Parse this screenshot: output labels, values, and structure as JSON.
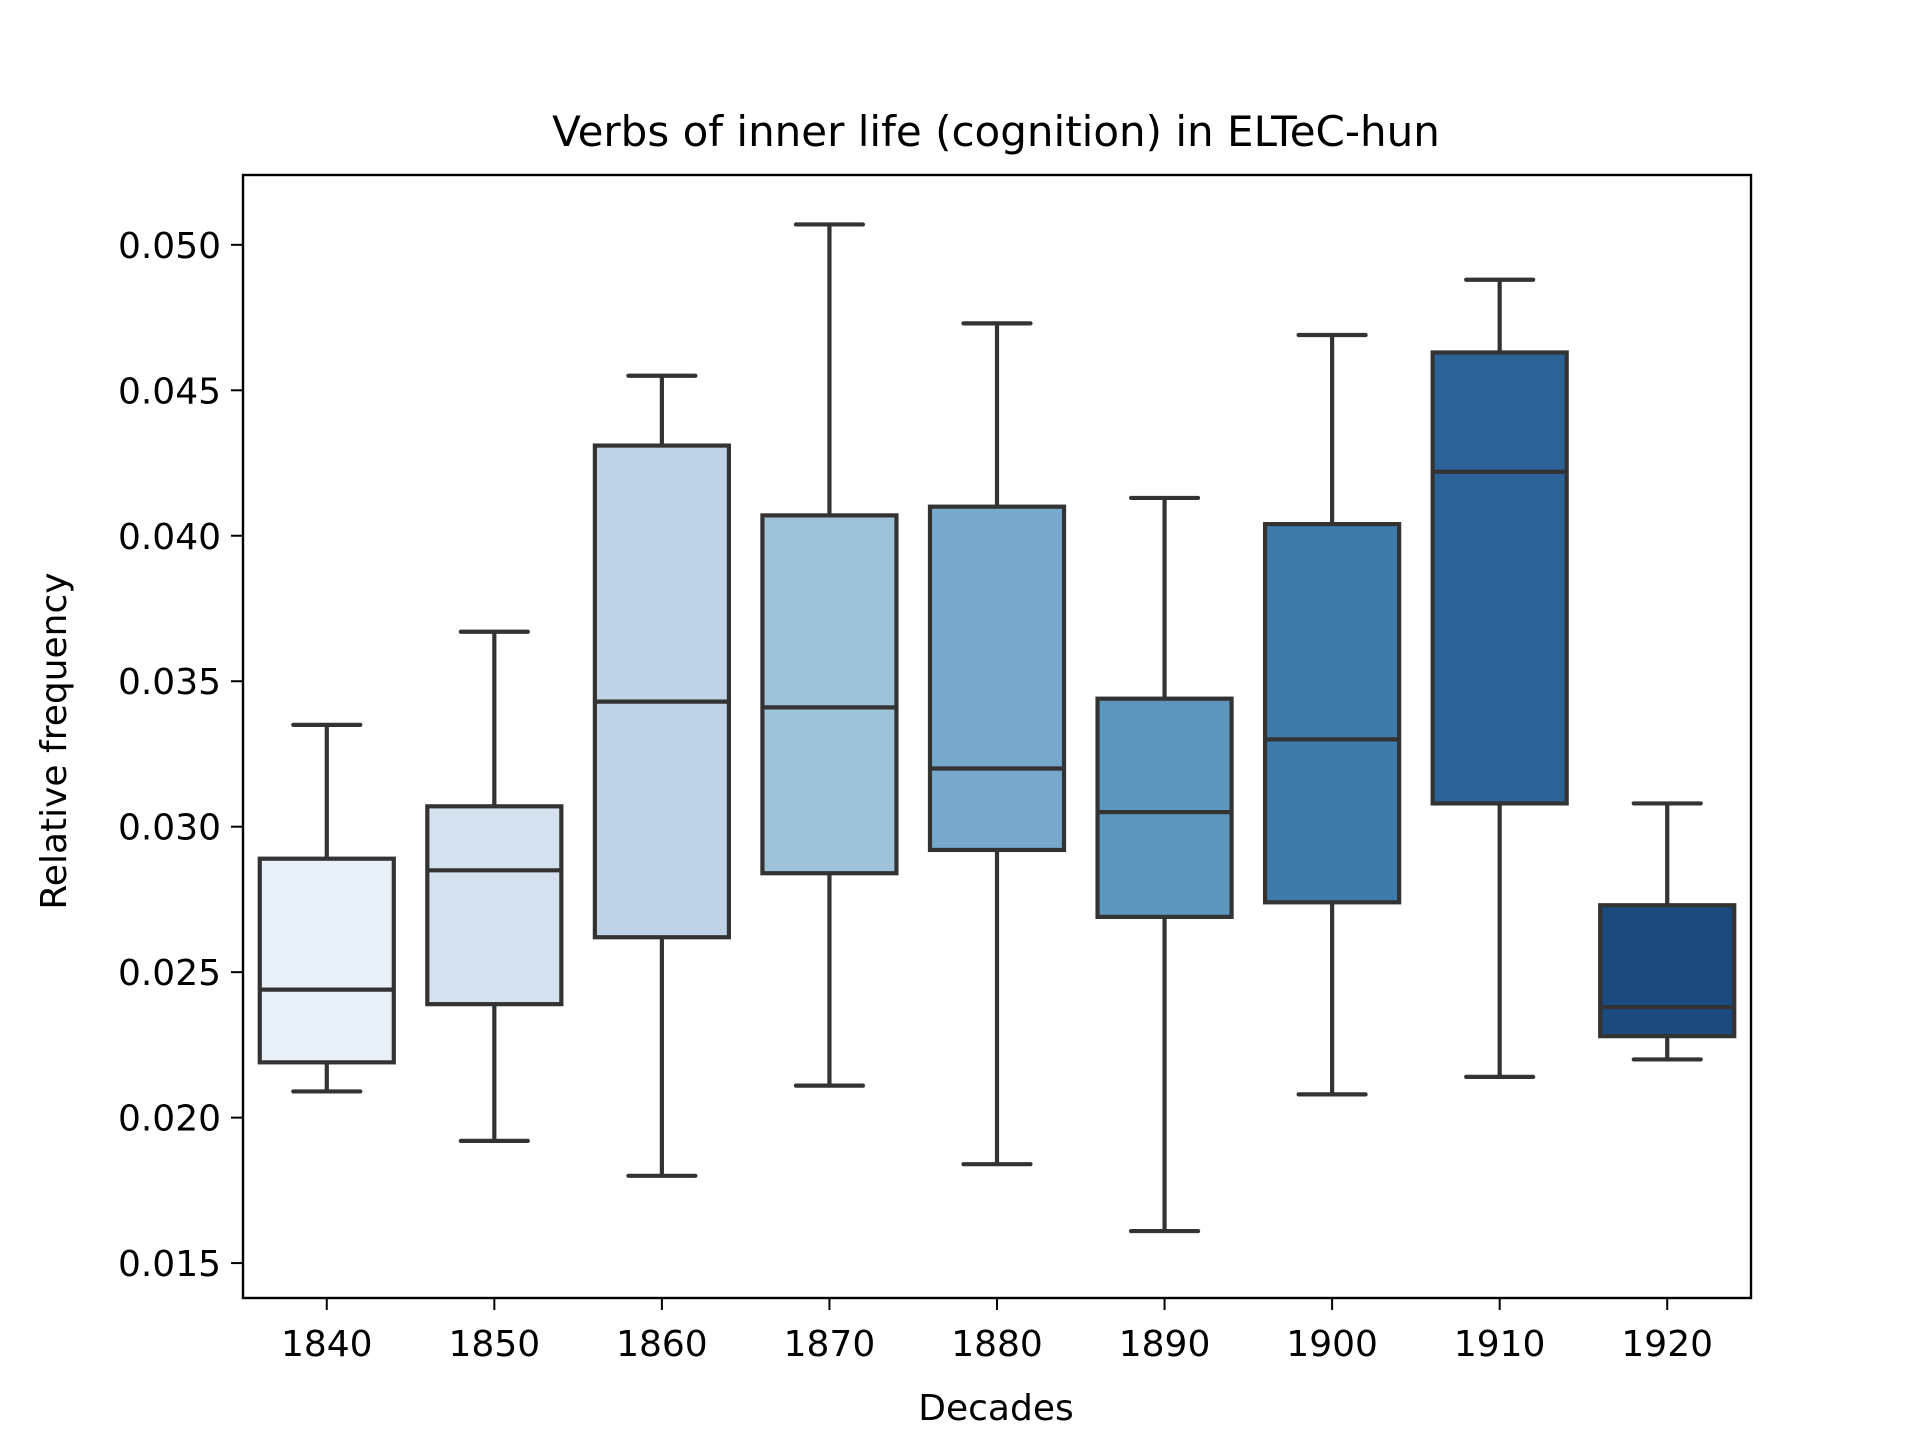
{
  "chart_data": {
    "type": "box",
    "title": "Verbs of inner life (cognition) in ELTeC-hun",
    "xlabel": "Decades",
    "ylabel": "Relative frequency",
    "ylim": [
      0.0138,
      0.0524
    ],
    "yticks": [
      0.015,
      0.02,
      0.025,
      0.03,
      0.035,
      0.04,
      0.045,
      0.05
    ],
    "ytick_labels": [
      "0.015",
      "0.020",
      "0.025",
      "0.030",
      "0.035",
      "0.040",
      "0.045",
      "0.050"
    ],
    "grid": false,
    "categories": [
      "1840",
      "1850",
      "1860",
      "1870",
      "1880",
      "1890",
      "1900",
      "1910",
      "1920"
    ],
    "boxes": [
      {
        "category": "1840",
        "whisker_low": 0.0209,
        "q1": 0.0219,
        "median": 0.0244,
        "q3": 0.0289,
        "whisker_high": 0.0335,
        "color": "#e8f0f8"
      },
      {
        "category": "1850",
        "whisker_low": 0.0192,
        "q1": 0.0239,
        "median": 0.0285,
        "q3": 0.0307,
        "whisker_high": 0.0367,
        "color": "#d4e2f0"
      },
      {
        "category": "1860",
        "whisker_low": 0.018,
        "q1": 0.0262,
        "median": 0.0343,
        "q3": 0.0431,
        "whisker_high": 0.0455,
        "color": "#bed3e5"
      },
      {
        "category": "1870",
        "whisker_low": 0.0211,
        "q1": 0.0284,
        "median": 0.0341,
        "q3": 0.0407,
        "whisker_high": 0.0507,
        "color": "#9ec2d7"
      },
      {
        "category": "1880",
        "whisker_low": 0.0184,
        "q1": 0.0292,
        "median": 0.032,
        "q3": 0.041,
        "whisker_high": 0.0473,
        "color": "#76a9cb"
      },
      {
        "category": "1890",
        "whisker_low": 0.0161,
        "q1": 0.0269,
        "median": 0.0305,
        "q3": 0.0344,
        "whisker_high": 0.0413,
        "color": "#5d97c0"
      },
      {
        "category": "1900",
        "whisker_low": 0.0208,
        "q1": 0.0274,
        "median": 0.033,
        "q3": 0.0404,
        "whisker_high": 0.0469,
        "color": "#3e7baa"
      },
      {
        "category": "1910",
        "whisker_low": 0.0214,
        "q1": 0.0308,
        "median": 0.0422,
        "q3": 0.0463,
        "whisker_high": 0.0488,
        "color": "#2b6298"
      },
      {
        "category": "1920",
        "whisker_low": 0.022,
        "q1": 0.0228,
        "median": 0.0238,
        "q3": 0.0273,
        "whisker_high": 0.0308,
        "color": "#1b4a7e"
      }
    ]
  }
}
